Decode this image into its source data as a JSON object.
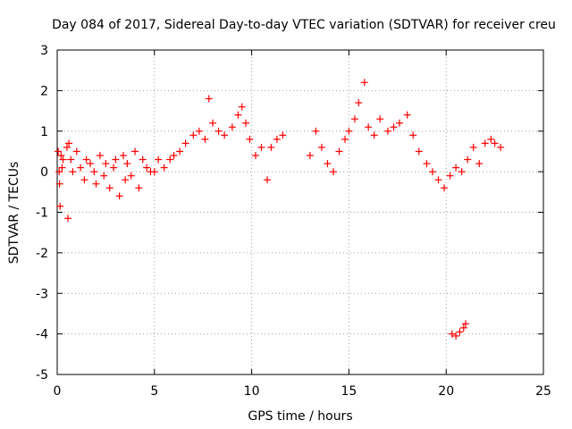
{
  "chart_data": {
    "type": "scatter",
    "title": "Day 084 of 2017, Sidereal Day-to-day VTEC variation (SDTVAR) for receiver creu",
    "xlabel": "GPS time / hours",
    "ylabel": "SDTVAR / TECUs",
    "xlim": [
      0,
      25
    ],
    "ylim": [
      -5,
      3
    ],
    "xticks": [
      0,
      5,
      10,
      15,
      20,
      25
    ],
    "yticks": [
      -5,
      -4,
      -3,
      -2,
      -1,
      0,
      1,
      2,
      3
    ],
    "xtick_labels": [
      "0",
      "5",
      "10",
      "15",
      "20",
      "25"
    ],
    "ytick_labels": [
      "-5",
      "-4",
      "-3",
      "-2",
      "-1",
      "0",
      "1",
      "2",
      "3"
    ],
    "grid": true,
    "marker": "+",
    "color": "#ff0000",
    "series": [
      {
        "name": "SDTVAR",
        "x": [
          0.05,
          0.1,
          0.12,
          0.15,
          0.2,
          0.25,
          0.3,
          0.5,
          0.55,
          0.6,
          0.7,
          0.8,
          1.0,
          1.2,
          1.4,
          1.5,
          1.7,
          1.9,
          2.0,
          2.2,
          2.4,
          2.5,
          2.7,
          2.9,
          3.0,
          3.2,
          3.4,
          3.5,
          3.6,
          3.8,
          4.0,
          4.2,
          4.4,
          4.6,
          4.8,
          5.0,
          5.2,
          5.5,
          5.8,
          6.0,
          6.3,
          6.6,
          7.0,
          7.3,
          7.6,
          7.8,
          8.0,
          8.3,
          8.6,
          9.0,
          9.3,
          9.5,
          9.7,
          9.9,
          10.2,
          10.5,
          10.8,
          11.0,
          11.3,
          11.6,
          13.0,
          13.3,
          13.6,
          13.9,
          14.2,
          14.5,
          14.8,
          15.0,
          15.3,
          15.5,
          15.8,
          16.0,
          16.3,
          16.6,
          17.0,
          17.3,
          17.6,
          18.0,
          18.3,
          18.6,
          19.0,
          19.3,
          19.6,
          19.9,
          20.2,
          20.5,
          20.8,
          21.1,
          21.4,
          21.7,
          22.0,
          22.3,
          22.5,
          22.8,
          20.3,
          20.5,
          20.7,
          20.9,
          21.0
        ],
        "y": [
          0.5,
          0.0,
          -0.3,
          -0.85,
          0.4,
          0.1,
          0.3,
          0.6,
          -1.15,
          0.7,
          0.3,
          0.0,
          0.5,
          0.1,
          -0.2,
          0.3,
          0.2,
          0.0,
          -0.3,
          0.4,
          -0.1,
          0.2,
          -0.4,
          0.1,
          0.3,
          -0.6,
          0.4,
          -0.2,
          0.2,
          -0.1,
          0.5,
          -0.4,
          0.3,
          0.1,
          0.0,
          0.0,
          0.3,
          0.1,
          0.3,
          0.4,
          0.5,
          0.7,
          0.9,
          1.0,
          0.8,
          1.8,
          1.2,
          1.0,
          0.9,
          1.1,
          1.4,
          1.6,
          1.2,
          0.8,
          0.4,
          0.6,
          -0.2,
          0.6,
          0.8,
          0.9,
          0.4,
          1.0,
          0.6,
          0.2,
          0.0,
          0.5,
          0.8,
          1.0,
          1.3,
          1.7,
          2.2,
          1.1,
          0.9,
          1.3,
          1.0,
          1.1,
          1.2,
          1.4,
          0.9,
          0.5,
          0.2,
          0.0,
          -0.2,
          -0.4,
          -0.1,
          0.1,
          0.0,
          0.3,
          0.6,
          0.2,
          0.7,
          0.8,
          0.7,
          0.6,
          -4.0,
          -4.05,
          -3.95,
          -3.85,
          -3.75
        ]
      }
    ]
  }
}
